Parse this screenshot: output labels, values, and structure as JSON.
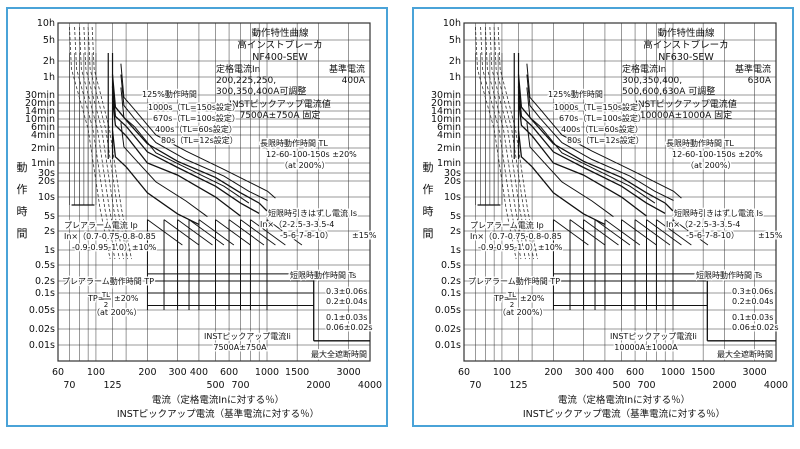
{
  "colors": {
    "frame": "#4aa3d8",
    "grid": "#333333",
    "curve": "#111111",
    "dash": "#333333"
  },
  "charts": [
    {
      "info": {
        "title": "動作特性曲線",
        "breaker": "高インストブレーカ",
        "model": "NF400-SEW",
        "rated_label": "定格電流In",
        "rated_values": [
          "200,225,250,",
          "300,350,400A可調整"
        ],
        "base_label": "基準電流",
        "base_value": "400A",
        "inst_label": "INSTピックアップ電流値",
        "inst_value": "7500A±750A 固定"
      },
      "notes": {
        "op125": "125%動作時間",
        "tl1000": "1000s（TL=150s設定）",
        "tl670": "670s（TL=100s設定）",
        "tl400": "400s（TL=60s設定）",
        "tl80": "80s（TL=12s設定）",
        "long_title": "長限時動作時間 TL",
        "long_values": "12-60-100-150s ±20%",
        "long_cond": "（at 200%）",
        "short_pick_title": "短限時引きはずし電流 Is",
        "short_pick_values1": "In×（2-2.5-3-3.5-4",
        "short_pick_values2": "-5-6-7-8-10）",
        "short_pick_tol": "±15%",
        "prealarm_title": "プレアラーム電流 Ip",
        "prealarm_values1": "In×（0.7-0.75-0.8-0.85",
        "prealarm_values2": "-0.9-0.95-1.0）±10%",
        "prealarm_time_title": "プレアラーム動作時間 TP",
        "tp_formula_left": "TP=",
        "tp_formula_num": "TL",
        "tp_formula_den": "2",
        "tp_formula_tol": "±20%",
        "tp_cond": "（at 200%）",
        "short_time_title": "短限時動作時間 Ts",
        "ts_values": [
          "0.3±0.06s",
          "0.2±0.04s",
          "0.1±0.03s",
          "0.06±0.02s"
        ],
        "inst_pick_title": "INSTピックアップ電流Ii",
        "inst_pick_value": "7500A±750A",
        "max_break": "最大全遮断時間"
      },
      "chart_data": {
        "type": "line",
        "xscale": "log",
        "yscale": "log",
        "xlim": [
          60,
          4000
        ],
        "ylim_seconds": [
          0.01,
          36000
        ],
        "x_ticks_row1": [
          "60",
          "100",
          "200",
          "300",
          "400",
          "600",
          "1000",
          "1500",
          "3000"
        ],
        "x_ticks_row2": [
          "70",
          "125",
          "500",
          "700",
          "2000",
          "4000"
        ],
        "y_ticks": [
          "10h",
          "5h",
          "2h",
          "1h",
          "30min",
          "20min",
          "14min",
          "10min",
          "6min",
          "4min",
          "2min",
          "1min",
          "30s",
          "20s",
          "10s",
          "5s",
          "2s",
          "1s",
          "0.5s",
          "0.2s",
          "0.1s",
          "0.05s",
          "0.02s",
          "0.01s"
        ],
        "ylabel": [
          "動",
          "作",
          "時",
          "間"
        ],
        "xlabel1": "電流（定格電流Inに対する％）",
        "xlabel2": "INSTピックアップ電流（基準電流に対する％）",
        "series": [
          {
            "x": [
              125,
              130,
              150,
              200,
              300,
              500,
              700,
              900,
              1000
            ],
            "y": [
              4000,
              1000,
              560,
              150,
              65,
              24,
              12,
              8,
              6
            ]
          },
          {
            "x": [
              125,
              130,
              150,
              200,
              300,
              500,
              700,
              900
            ],
            "y": [
              2500,
              670,
              380,
              100,
              44,
              16,
              8,
              5.5
            ]
          },
          {
            "x": [
              125,
              130,
              150,
              200,
              300,
              500,
              700
            ],
            "y": [
              1500,
              400,
              230,
              60,
              27,
              10,
              5
            ]
          },
          {
            "x": [
              125,
              130,
              150,
              200,
              300,
              400
            ],
            "y": [
              300,
              80,
              46,
              12,
              5.4,
              3
            ]
          }
        ],
        "short_time_levels": [
          0.3,
          0.2,
          0.1,
          0.06
        ],
        "short_pickup_range": [
          200,
          1000
        ],
        "inst_pickup_pct": 1875,
        "max_break_time": 0.012
      }
    },
    {
      "info": {
        "title": "動作特性曲線",
        "breaker": "高インストブレーカ",
        "model": "NF630-SEW",
        "rated_label": "定格電流In",
        "rated_values": [
          "300,350,400,",
          "500,600,630A 可調整"
        ],
        "base_label": "基準電流",
        "base_value": "630A",
        "inst_label": "INSTピックアップ電流値",
        "inst_value": "10000A±1000A 固定"
      },
      "notes": {
        "op125": "125%動作時間",
        "tl1000": "1000s（TL=150s設定）",
        "tl670": "670s（TL=100s設定）",
        "tl400": "400s（TL=60s設定）",
        "tl80": "80s（TL=12s設定）",
        "long_title": "長限時動作時間 TL",
        "long_values": "12-60-100-150s ±20%",
        "long_cond": "（at 200%）",
        "short_pick_title": "短限時引きはずし電流 Is",
        "short_pick_values1": "In×（2-2.5-3-3.5-4",
        "short_pick_values2": "-5-6-7-8-10）",
        "short_pick_tol": "±15%",
        "prealarm_title": "プレアラーム電流 Ip",
        "prealarm_values1": "In×（0.7-0.75-0.8-0.85",
        "prealarm_values2": "-0.9-0.95-1.0）±10%",
        "prealarm_time_title": "プレアラーム動作時間 TP",
        "tp_formula_left": "TP=",
        "tp_formula_num": "TL",
        "tp_formula_den": "2",
        "tp_formula_tol": "±20%",
        "tp_cond": "（at 200%）",
        "short_time_title": "短限時動作時間 Ts",
        "ts_values": [
          "0.3±0.06s",
          "0.2±0.04s",
          "0.1±0.03s",
          "0.06±0.02s"
        ],
        "inst_pick_title": "INSTピックアップ電流Ii",
        "inst_pick_value": "10000A±1000A",
        "max_break": "最大全遮断時間"
      },
      "chart_data": {
        "type": "line",
        "xscale": "log",
        "yscale": "log",
        "xlim": [
          60,
          4000
        ],
        "ylim_seconds": [
          0.01,
          36000
        ],
        "x_ticks_row1": [
          "60",
          "100",
          "200",
          "300",
          "400",
          "600",
          "1000",
          "1500",
          "3000"
        ],
        "x_ticks_row2": [
          "70",
          "125",
          "500",
          "700",
          "2000",
          "4000"
        ],
        "y_ticks": [
          "10h",
          "5h",
          "2h",
          "1h",
          "30min",
          "20min",
          "14min",
          "10min",
          "6min",
          "4min",
          "2min",
          "1min",
          "30s",
          "20s",
          "10s",
          "5s",
          "2s",
          "1s",
          "0.5s",
          "0.2s",
          "0.1s",
          "0.05s",
          "0.02s",
          "0.01s"
        ],
        "ylabel": [
          "動",
          "作",
          "時",
          "間"
        ],
        "xlabel1": "電流（定格電流Inに対する％）",
        "xlabel2": "INSTピックアップ電流（基準電流に対する％）",
        "series": [
          {
            "x": [
              125,
              130,
              150,
              200,
              300,
              500,
              700,
              900,
              1000
            ],
            "y": [
              4000,
              1000,
              560,
              150,
              65,
              24,
              12,
              8,
              6
            ]
          },
          {
            "x": [
              125,
              130,
              150,
              200,
              300,
              500,
              700,
              900
            ],
            "y": [
              2500,
              670,
              380,
              100,
              44,
              16,
              8,
              5.5
            ]
          },
          {
            "x": [
              125,
              130,
              150,
              200,
              300,
              500,
              700
            ],
            "y": [
              1500,
              400,
              230,
              60,
              27,
              10,
              5
            ]
          },
          {
            "x": [
              125,
              130,
              150,
              200,
              300,
              400
            ],
            "y": [
              300,
              80,
              46,
              12,
              5.4,
              3
            ]
          }
        ],
        "short_time_levels": [
          0.3,
          0.2,
          0.1,
          0.06
        ],
        "short_pickup_range": [
          200,
          1000
        ],
        "inst_pickup_pct": 1587,
        "max_break_time": 0.012
      }
    }
  ]
}
